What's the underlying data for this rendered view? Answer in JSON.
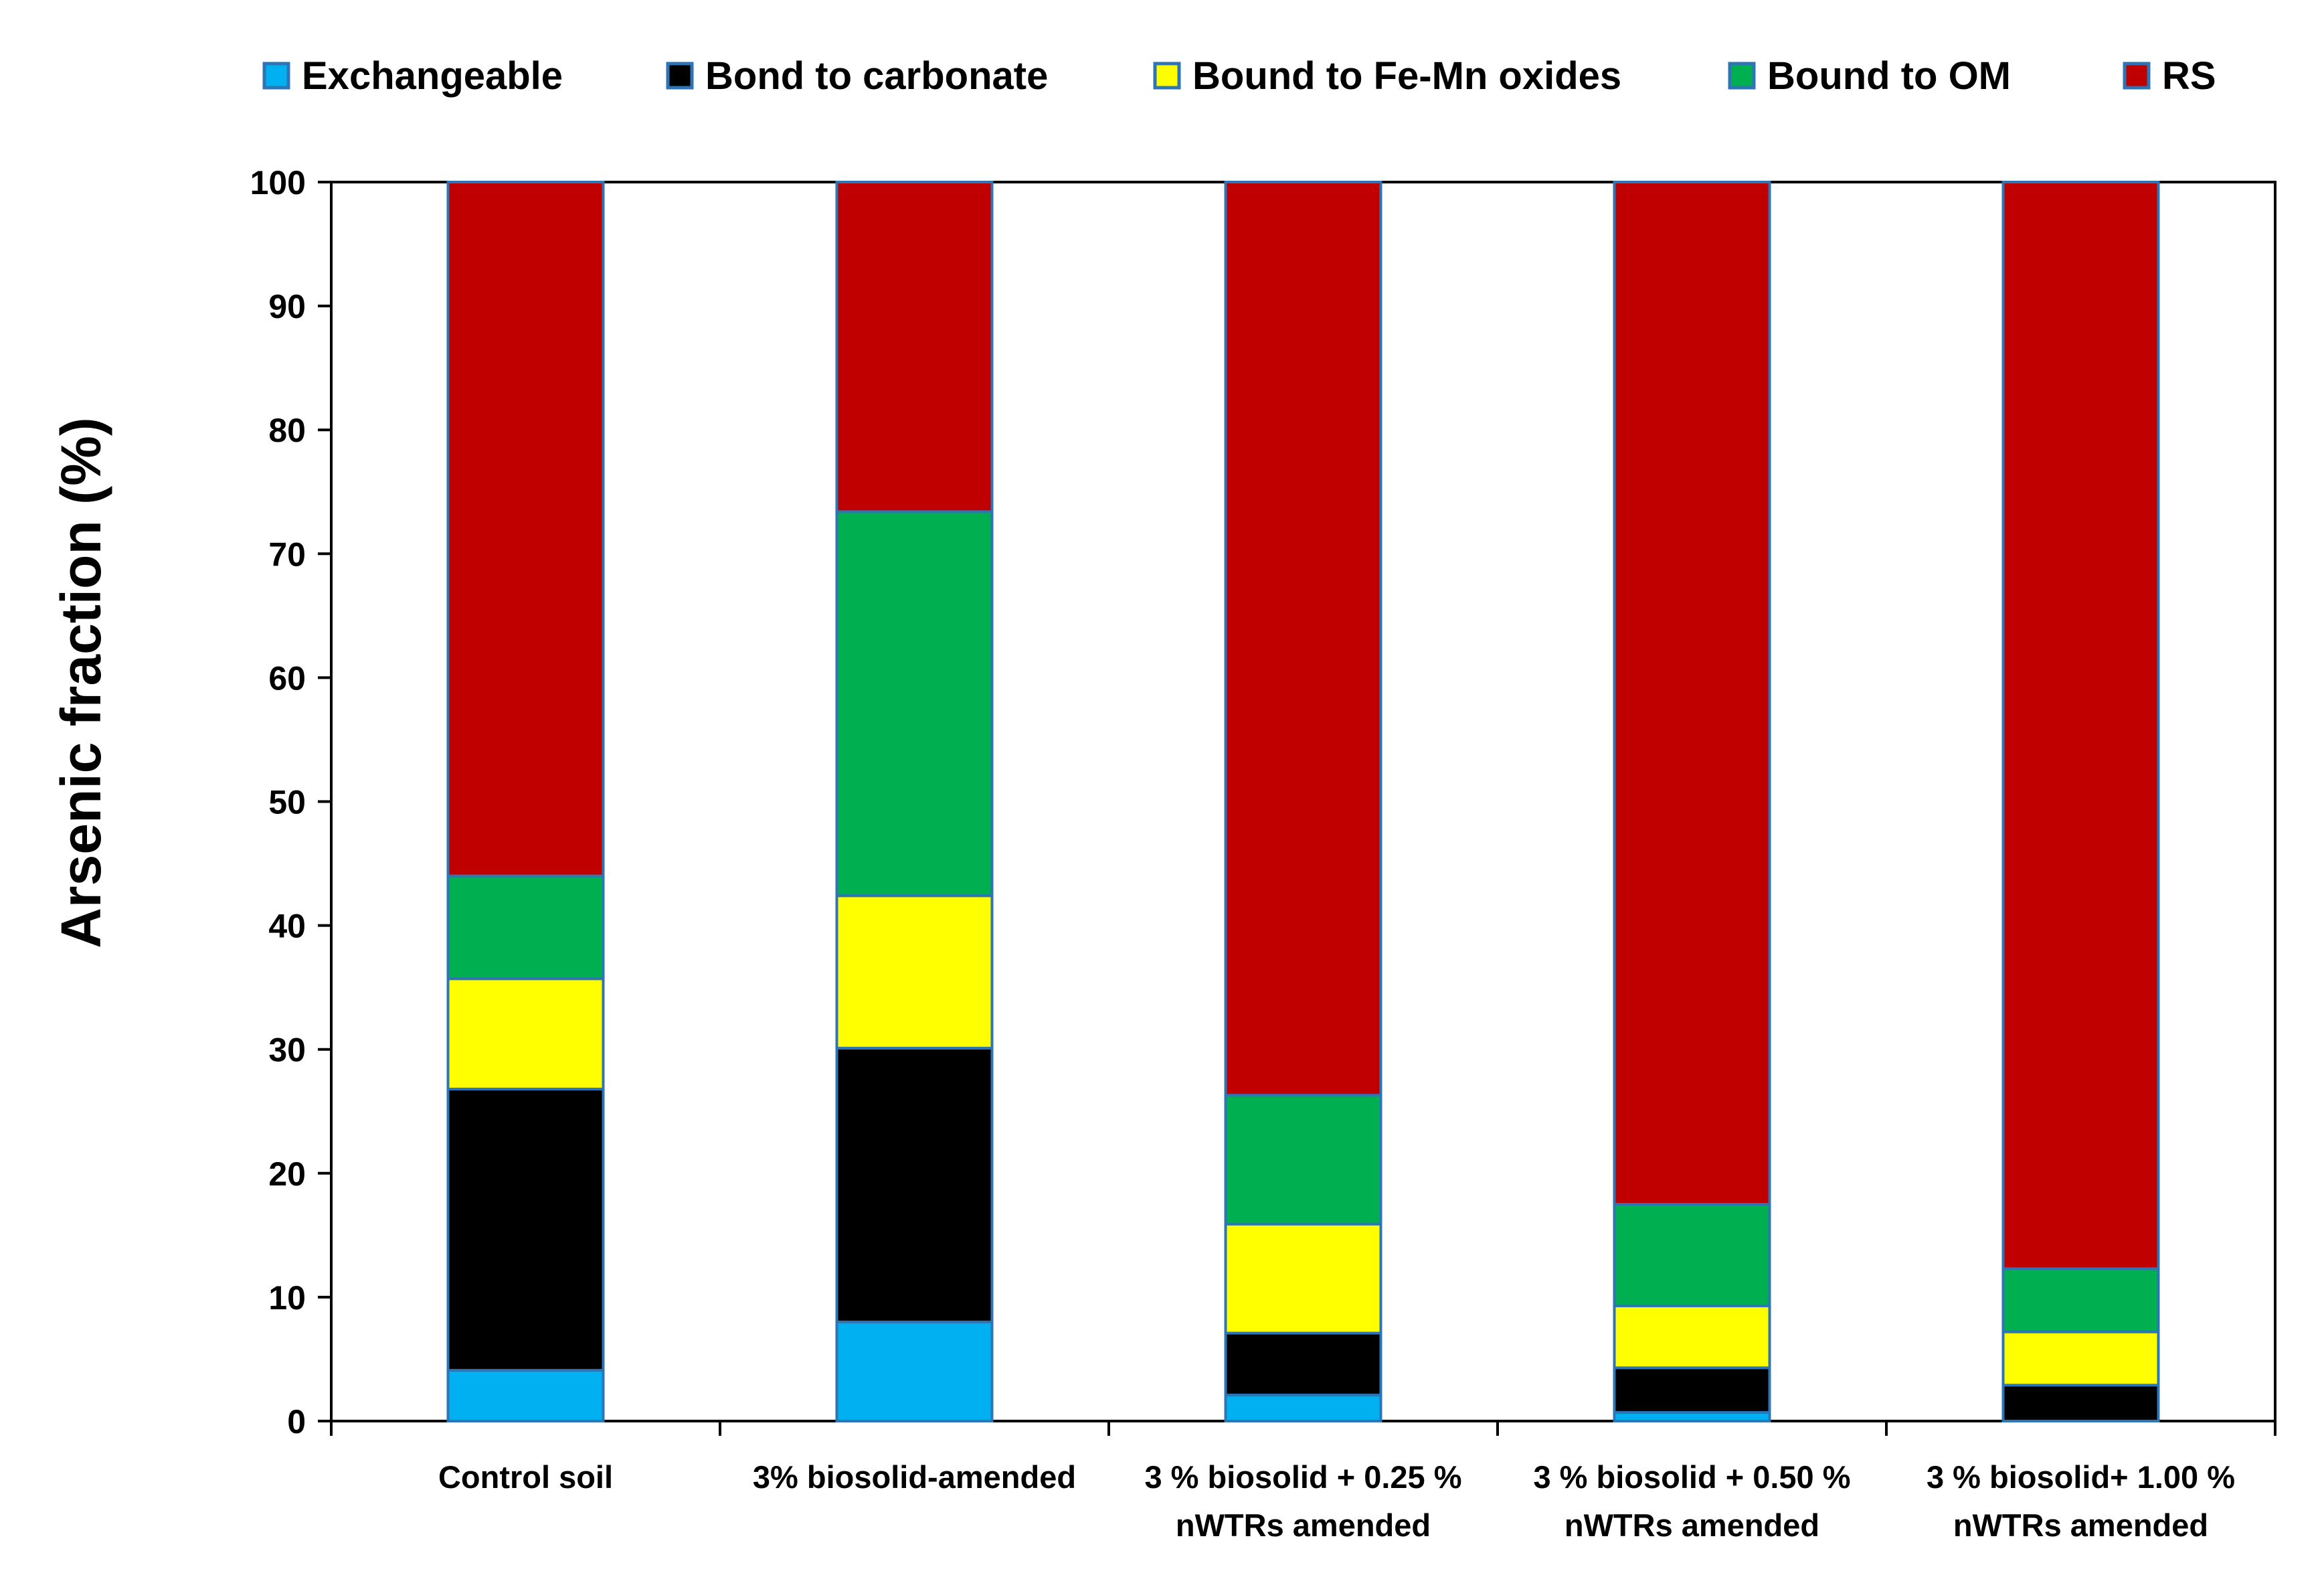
{
  "chart_data": {
    "type": "bar",
    "stacked": true,
    "title": "",
    "xlabel": "",
    "ylabel": "Arsenic  fraction (%)",
    "ylim": [
      0,
      100
    ],
    "yticks": [
      0,
      10,
      20,
      30,
      40,
      50,
      60,
      70,
      80,
      90,
      100
    ],
    "grid": false,
    "legend_position": "top",
    "categories": [
      [
        "Control soil"
      ],
      [
        "3% biosolid-amended"
      ],
      [
        "3 % biosolid + 0.25 %",
        "nWTRs amended"
      ],
      [
        "3 % biosolid + 0.50 %",
        "nWTRs amended"
      ],
      [
        "3 % biosolid+ 1.00 %",
        "nWTRs amended"
      ]
    ],
    "series": [
      {
        "name": "Exchangeable",
        "color": "#00B0F0",
        "values": [
          4.1,
          8.0,
          2.1,
          0.7,
          0.0
        ]
      },
      {
        "name": "Bond to carbonate",
        "color": "#000000",
        "values": [
          22.7,
          22.1,
          5.0,
          3.6,
          2.9
        ]
      },
      {
        "name": "Bound to Fe-Mn oxides",
        "color": "#FFFF00",
        "values": [
          8.9,
          12.3,
          8.8,
          5.0,
          4.3
        ]
      },
      {
        "name": "Bound to OM",
        "color": "#00B050",
        "values": [
          8.3,
          31.0,
          10.4,
          8.2,
          5.1
        ]
      },
      {
        "name": "RS",
        "color": "#C00000",
        "values": [
          56.0,
          26.6,
          73.7,
          82.5,
          87.7
        ]
      }
    ]
  }
}
